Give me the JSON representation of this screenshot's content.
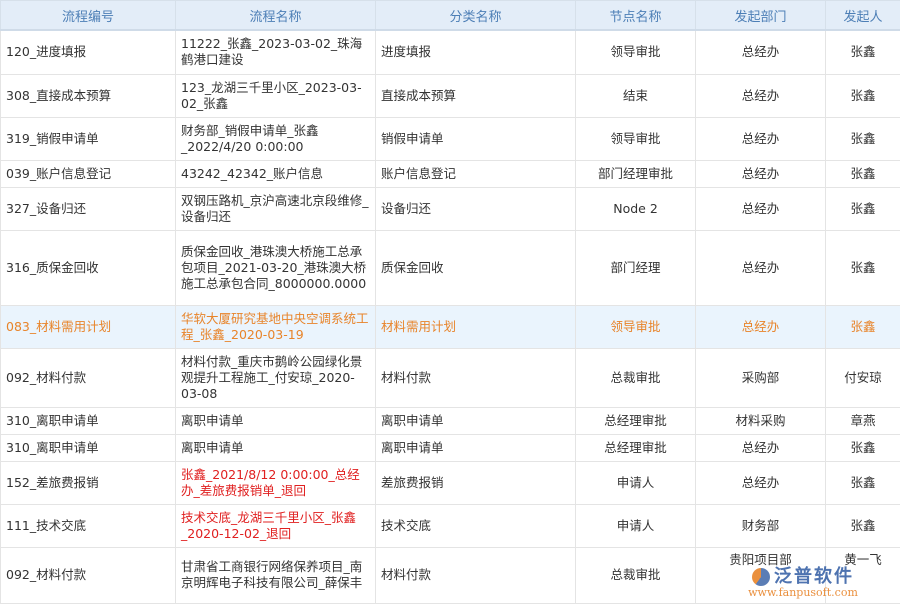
{
  "columns": [
    "流程编号",
    "流程名称",
    "分类名称",
    "节点名称",
    "发起部门",
    "发起人"
  ],
  "rows": [
    {
      "id": "120_进度填报",
      "name": "11222_张鑫_2023-03-02_珠海鹤港口建设",
      "category": "进度填报",
      "node": "领导审批",
      "dept": "总经办",
      "user": "张鑫",
      "style": "normal"
    },
    {
      "id": "308_直接成本预算",
      "name": "123_龙湖三千里小区_2023-03-02_张鑫",
      "category": "直接成本预算",
      "node": "结束",
      "dept": "总经办",
      "user": "张鑫",
      "style": "normal"
    },
    {
      "id": "319_销假申请单",
      "name": "财务部_销假申请单_张鑫_2022/4/20 0:00:00",
      "category": "销假申请单",
      "node": "领导审批",
      "dept": "总经办",
      "user": "张鑫",
      "style": "normal"
    },
    {
      "id": "039_账户信息登记",
      "name": "43242_42342_账户信息",
      "category": "账户信息登记",
      "node": "部门经理审批",
      "dept": "总经办",
      "user": "张鑫",
      "style": "normal"
    },
    {
      "id": "327_设备归还",
      "name": "双钢压路机_京沪高速北京段维修_设备归还",
      "category": "设备归还",
      "node": "Node 2",
      "dept": "总经办",
      "user": "张鑫",
      "style": "normal"
    },
    {
      "id": "316_质保金回收",
      "name": "质保金回收_港珠澳大桥施工总承包项目_2021-03-20_港珠澳大桥施工总承包合同_8000000.0000",
      "category": "质保金回收",
      "node": "部门经理",
      "dept": "总经办",
      "user": "张鑫",
      "style": "normal"
    },
    {
      "id": "083_材料需用计划",
      "name": "华软大厦研究基地中央空调系统工程_张鑫_2020-03-19",
      "category": "材料需用计划",
      "node": "领导审批",
      "dept": "总经办",
      "user": "张鑫",
      "style": "highlight"
    },
    {
      "id": "092_材料付款",
      "name": "材料付款_重庆市鹅岭公园绿化景观提升工程施工_付安琼_2020-03-08",
      "category": "材料付款",
      "node": "总裁审批",
      "dept": "采购部",
      "user": "付安琼",
      "style": "normal"
    },
    {
      "id": "310_离职申请单",
      "name": "离职申请单",
      "category": "离职申请单",
      "node": "总经理审批",
      "dept": "材料采购",
      "user": "章燕",
      "style": "normal"
    },
    {
      "id": "310_离职申请单",
      "name": "离职申请单",
      "category": "离职申请单",
      "node": "总经理审批",
      "dept": "总经办",
      "user": "张鑫",
      "style": "normal"
    },
    {
      "id": "152_差旅费报销",
      "name": "张鑫_2021/8/12 0:00:00_总经办_差旅费报销单_退回",
      "category": "差旅费报销",
      "node": "申请人",
      "dept": "总经办",
      "user": "张鑫",
      "style": "returned"
    },
    {
      "id": "111_技术交底",
      "name": "技术交底_龙湖三千里小区_张鑫_2020-12-02_退回",
      "category": "技术交底",
      "node": "申请人",
      "dept": "财务部",
      "user": "张鑫",
      "style": "returned"
    },
    {
      "id": "092_材料付款",
      "name": "甘肃省工商银行网络保养项目_南京明辉电子科技有限公司_薛保丰",
      "category": "材料付款",
      "node": "总裁审批",
      "dept": "贵阳项目部",
      "user": "黄一飞",
      "style": "normal"
    }
  ],
  "watermark": {
    "brand": "泛普软件",
    "url": "www.fanpusoft.com"
  },
  "colors": {
    "header_bg": "#e3edf8",
    "header_text": "#4d7fb6",
    "highlight_text": "#e8842a",
    "returned_text": "#e02020"
  }
}
